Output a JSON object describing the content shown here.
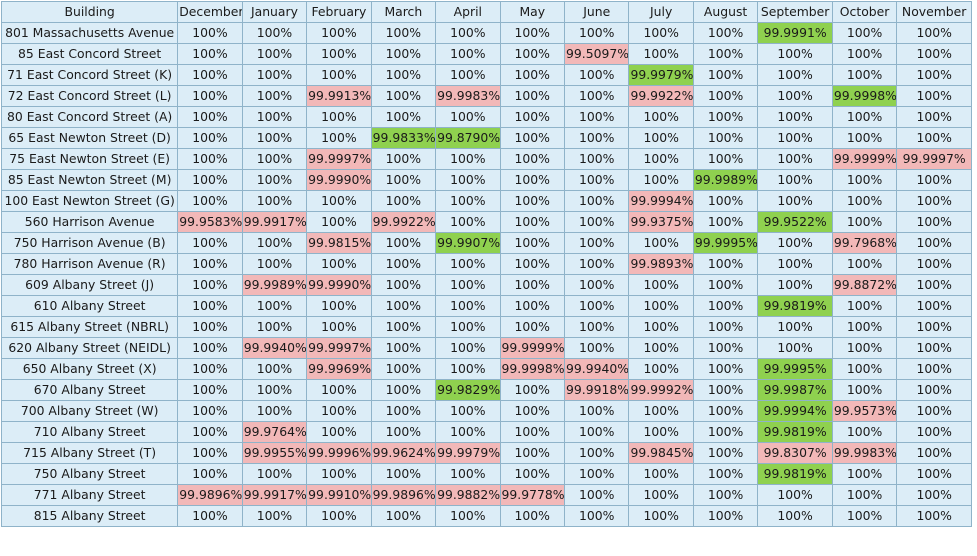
{
  "colors": {
    "cell": "#dcedf7",
    "border": "#8fb3c9",
    "below_full": "#f2b8b8",
    "recovered": "#8fd14f"
  },
  "headers": [
    "Building",
    "December",
    "January",
    "February",
    "March",
    "April",
    "May",
    "June",
    "July",
    "August",
    "September",
    "October",
    "November"
  ],
  "rows": [
    {
      "building": "801 Massachusetts Avenue",
      "values": [
        "100%",
        "100%",
        "100%",
        "100%",
        "100%",
        "100%",
        "100%",
        "100%",
        "100%",
        "99.9991%",
        "100%",
        "100%"
      ],
      "status": [
        "",
        "",
        "",
        "",
        "",
        "",
        "",
        "",
        "",
        "green",
        "",
        ""
      ]
    },
    {
      "building": "85 East Concord Street",
      "values": [
        "100%",
        "100%",
        "100%",
        "100%",
        "100%",
        "100%",
        "99.5097%",
        "100%",
        "100%",
        "100%",
        "100%",
        "100%"
      ],
      "status": [
        "",
        "",
        "",
        "",
        "",
        "",
        "pink",
        "",
        "",
        "",
        "",
        ""
      ]
    },
    {
      "building": "71 East Concord Street (K)",
      "values": [
        "100%",
        "100%",
        "100%",
        "100%",
        "100%",
        "100%",
        "100%",
        "99.9979%",
        "100%",
        "100%",
        "100%",
        "100%"
      ],
      "status": [
        "",
        "",
        "",
        "",
        "",
        "",
        "",
        "green",
        "",
        "",
        "",
        ""
      ]
    },
    {
      "building": "72 East Concord Street (L)",
      "values": [
        "100%",
        "100%",
        "99.9913%",
        "100%",
        "99.9983%",
        "100%",
        "100%",
        "99.9922%",
        "100%",
        "100%",
        "99.9998%",
        "100%"
      ],
      "status": [
        "",
        "",
        "pink",
        "",
        "pink",
        "",
        "",
        "pink",
        "",
        "",
        "green",
        ""
      ]
    },
    {
      "building": "80 East Concord Street (A)",
      "values": [
        "100%",
        "100%",
        "100%",
        "100%",
        "100%",
        "100%",
        "100%",
        "100%",
        "100%",
        "100%",
        "100%",
        "100%"
      ],
      "status": [
        "",
        "",
        "",
        "",
        "",
        "",
        "",
        "",
        "",
        "",
        "",
        ""
      ]
    },
    {
      "building": "65 East Newton Street (D)",
      "values": [
        "100%",
        "100%",
        "100%",
        "99.9833%",
        "99.8790%",
        "100%",
        "100%",
        "100%",
        "100%",
        "100%",
        "100%",
        "100%"
      ],
      "status": [
        "",
        "",
        "",
        "green",
        "green",
        "",
        "",
        "",
        "",
        "",
        "",
        ""
      ]
    },
    {
      "building": "75 East Newton Street (E)",
      "values": [
        "100%",
        "100%",
        "99.9997%",
        "100%",
        "100%",
        "100%",
        "100%",
        "100%",
        "100%",
        "100%",
        "99.9999%",
        "99.9997%"
      ],
      "status": [
        "",
        "",
        "pink",
        "",
        "",
        "",
        "",
        "",
        "",
        "",
        "pink",
        "pink"
      ]
    },
    {
      "building": "85 East Newton Street (M)",
      "values": [
        "100%",
        "100%",
        "99.9990%",
        "100%",
        "100%",
        "100%",
        "100%",
        "100%",
        "99.9989%",
        "100%",
        "100%",
        "100%"
      ],
      "status": [
        "",
        "",
        "pink",
        "",
        "",
        "",
        "",
        "",
        "green",
        "",
        "",
        ""
      ]
    },
    {
      "building": "100 East Newton Street (G)",
      "values": [
        "100%",
        "100%",
        "100%",
        "100%",
        "100%",
        "100%",
        "100%",
        "99.9994%",
        "100%",
        "100%",
        "100%",
        "100%"
      ],
      "status": [
        "",
        "",
        "",
        "",
        "",
        "",
        "",
        "pink",
        "",
        "",
        "",
        ""
      ]
    },
    {
      "building": "560 Harrison Avenue",
      "values": [
        "99.9583%",
        "99.9917%",
        "100%",
        "99.9922%",
        "100%",
        "100%",
        "100%",
        "99.9375%",
        "100%",
        "99.9522%",
        "100%",
        "100%"
      ],
      "status": [
        "pink",
        "pink",
        "",
        "pink",
        "",
        "",
        "",
        "pink",
        "",
        "green",
        "",
        ""
      ]
    },
    {
      "building": "750 Harrison Avenue (B)",
      "values": [
        "100%",
        "100%",
        "99.9815%",
        "100%",
        "99.9907%",
        "100%",
        "100%",
        "100%",
        "99.9995%",
        "100%",
        "99.7968%",
        "100%"
      ],
      "status": [
        "",
        "",
        "pink",
        "",
        "green",
        "",
        "",
        "",
        "green",
        "",
        "pink",
        ""
      ]
    },
    {
      "building": "780 Harrison Avenue (R)",
      "values": [
        "100%",
        "100%",
        "100%",
        "100%",
        "100%",
        "100%",
        "100%",
        "99.9893%",
        "100%",
        "100%",
        "100%",
        "100%"
      ],
      "status": [
        "",
        "",
        "",
        "",
        "",
        "",
        "",
        "pink",
        "",
        "",
        "",
        ""
      ]
    },
    {
      "building": "609 Albany Street (J)",
      "values": [
        "100%",
        "99.9989%",
        "99.9990%",
        "100%",
        "100%",
        "100%",
        "100%",
        "100%",
        "100%",
        "100%",
        "99.8872%",
        "100%"
      ],
      "status": [
        "",
        "pink",
        "pink",
        "",
        "",
        "",
        "",
        "",
        "",
        "",
        "pink",
        ""
      ]
    },
    {
      "building": "610 Albany Street",
      "values": [
        "100%",
        "100%",
        "100%",
        "100%",
        "100%",
        "100%",
        "100%",
        "100%",
        "100%",
        "99.9819%",
        "100%",
        "100%"
      ],
      "status": [
        "",
        "",
        "",
        "",
        "",
        "",
        "",
        "",
        "",
        "green",
        "",
        ""
      ]
    },
    {
      "building": "615 Albany Street (NBRL)",
      "values": [
        "100%",
        "100%",
        "100%",
        "100%",
        "100%",
        "100%",
        "100%",
        "100%",
        "100%",
        "100%",
        "100%",
        "100%"
      ],
      "status": [
        "",
        "",
        "",
        "",
        "",
        "",
        "",
        "",
        "",
        "",
        "",
        ""
      ]
    },
    {
      "building": "620 Albany Street (NEIDL)",
      "values": [
        "100%",
        "99.9940%",
        "99.9997%",
        "100%",
        "100%",
        "99.9999%",
        "100%",
        "100%",
        "100%",
        "100%",
        "100%",
        "100%"
      ],
      "status": [
        "",
        "pink",
        "pink",
        "",
        "",
        "pink",
        "",
        "",
        "",
        "",
        "",
        ""
      ]
    },
    {
      "building": "650 Albany Street (X)",
      "values": [
        "100%",
        "100%",
        "99.9969%",
        "100%",
        "100%",
        "99.9998%",
        "99.9940%",
        "100%",
        "100%",
        "99.9995%",
        "100%",
        "100%"
      ],
      "status": [
        "",
        "",
        "pink",
        "",
        "",
        "pink",
        "pink",
        "",
        "",
        "green",
        "",
        ""
      ]
    },
    {
      "building": "670 Albany Street",
      "values": [
        "100%",
        "100%",
        "100%",
        "100%",
        "99.9829%",
        "100%",
        "99.9918%",
        "99.9992%",
        "100%",
        "99.9987%",
        "100%",
        "100%"
      ],
      "status": [
        "",
        "",
        "",
        "",
        "green",
        "",
        "pink",
        "pink",
        "",
        "green",
        "",
        ""
      ]
    },
    {
      "building": "700 Albany Street (W)",
      "values": [
        "100%",
        "100%",
        "100%",
        "100%",
        "100%",
        "100%",
        "100%",
        "100%",
        "100%",
        "99.9994%",
        "99.9573%",
        "100%"
      ],
      "status": [
        "",
        "",
        "",
        "",
        "",
        "",
        "",
        "",
        "",
        "green",
        "pink",
        ""
      ]
    },
    {
      "building": "710 Albany Street",
      "values": [
        "100%",
        "99.9764%",
        "100%",
        "100%",
        "100%",
        "100%",
        "100%",
        "100%",
        "100%",
        "99.9819%",
        "100%",
        "100%"
      ],
      "status": [
        "",
        "pink",
        "",
        "",
        "",
        "",
        "",
        "",
        "",
        "green",
        "",
        ""
      ]
    },
    {
      "building": "715 Albany Street (T)",
      "values": [
        "100%",
        "99.9955%",
        "99.9996%",
        "99.9624%",
        "99.9979%",
        "100%",
        "100%",
        "99.9845%",
        "100%",
        "99.8307%",
        "99.9983%",
        "100%"
      ],
      "status": [
        "",
        "pink",
        "pink",
        "pink",
        "pink",
        "",
        "",
        "pink",
        "",
        "pink",
        "pink",
        ""
      ]
    },
    {
      "building": "750 Albany Street",
      "values": [
        "100%",
        "100%",
        "100%",
        "100%",
        "100%",
        "100%",
        "100%",
        "100%",
        "100%",
        "99.9819%",
        "100%",
        "100%"
      ],
      "status": [
        "",
        "",
        "",
        "",
        "",
        "",
        "",
        "",
        "",
        "green",
        "",
        ""
      ]
    },
    {
      "building": "771 Albany Street",
      "values": [
        "99.9896%",
        "99.9917%",
        "99.9910%",
        "99.9896%",
        "99.9882%",
        "99.9778%",
        "100%",
        "100%",
        "100%",
        "100%",
        "100%",
        "100%"
      ],
      "status": [
        "pink",
        "pink",
        "pink",
        "pink",
        "pink",
        "pink",
        "",
        "",
        "",
        "",
        "",
        ""
      ]
    },
    {
      "building": "815 Albany Street",
      "values": [
        "100%",
        "100%",
        "100%",
        "100%",
        "100%",
        "100%",
        "100%",
        "100%",
        "100%",
        "100%",
        "100%",
        "100%"
      ],
      "status": [
        "",
        "",
        "",
        "",
        "",
        "",
        "",
        "",
        "",
        "",
        "",
        ""
      ]
    }
  ]
}
